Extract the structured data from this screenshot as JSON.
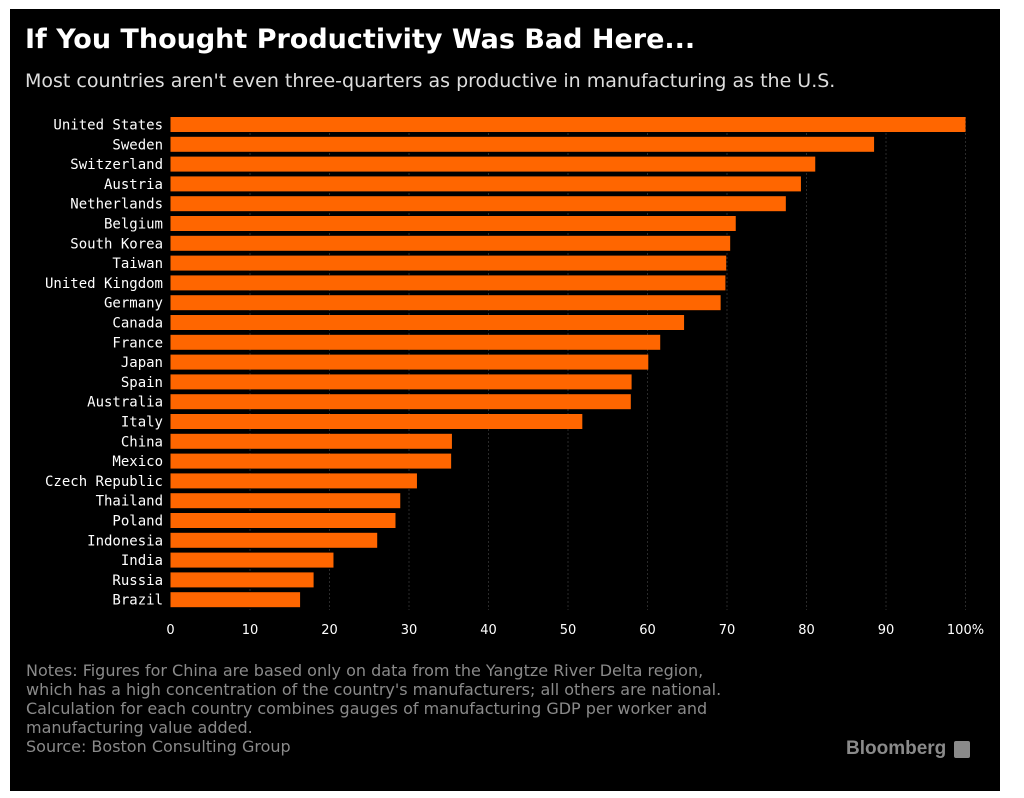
{
  "header": {
    "title": "If You Thought Productivity Was Bad Here...",
    "subtitle": "Most countries aren't even three-quarters as productive in manufacturing as the U.S."
  },
  "chart_data": {
    "type": "bar",
    "orientation": "horizontal",
    "title": "If You Thought Productivity Was Bad Here...",
    "subtitle": "Most countries aren't even three-quarters as productive in manufacturing as the U.S.",
    "xlabel": "",
    "ylabel": "",
    "xlim": [
      0,
      100
    ],
    "x_ticks": [
      "0",
      "10",
      "20",
      "30",
      "40",
      "50",
      "60",
      "70",
      "80",
      "90",
      "100%"
    ],
    "grid": true,
    "bar_color": "#ff6600",
    "categories": [
      "United States",
      "Sweden",
      "Switzerland",
      "Austria",
      "Netherlands",
      "Belgium",
      "South Korea",
      "Taiwan",
      "United Kingdom",
      "Germany",
      "Canada",
      "France",
      "Japan",
      "Spain",
      "Australia",
      "Italy",
      "China",
      "Mexico",
      "Czech Republic",
      "Thailand",
      "Poland",
      "Indonesia",
      "India",
      "Russia",
      "Brazil"
    ],
    "values": [
      100,
      88.5,
      81.1,
      79.3,
      77.4,
      71.1,
      70.4,
      69.9,
      69.8,
      69.2,
      64.6,
      61.6,
      60.1,
      58.0,
      57.9,
      51.8,
      35.4,
      35.3,
      31.0,
      28.9,
      28.3,
      26.0,
      20.5,
      18.0,
      16.3
    ]
  },
  "footer": {
    "notes": [
      "Notes: Figures for China are based only on data from the Yangtze River Delta region,",
      "which has a high concentration of the country's manufacturers; all others are national.",
      "Calculation for each country combines gauges of manufacturing GDP per worker and",
      "manufacturing value added.",
      "Source: Boston Consulting Group"
    ],
    "logo": "Bloomberg"
  }
}
